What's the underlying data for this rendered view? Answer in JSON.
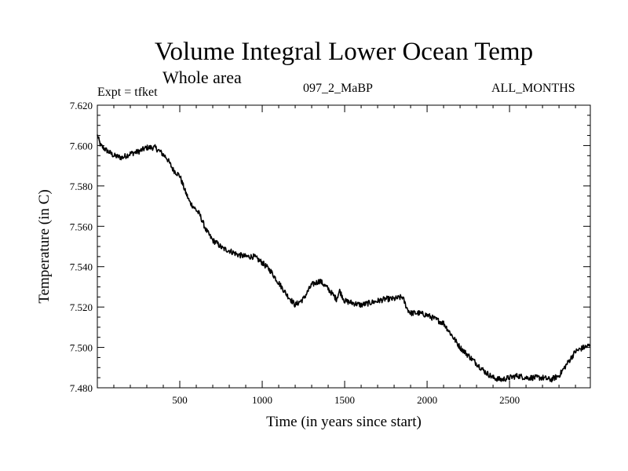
{
  "header": {
    "title": "Volume Integral Lower Ocean Temp",
    "subtitle": "Whole area",
    "experiment": "Expt = tfket",
    "run_id": "097_2_MaBP",
    "months": "ALL_MONTHS"
  },
  "chart_data": {
    "type": "line",
    "title": "Volume Integral Lower Ocean Temp",
    "subtitle": "Whole area",
    "xlabel": "Time (in years since start)",
    "ylabel": "Temperature (in C)",
    "xlim": [
      0,
      2990
    ],
    "ylim": [
      7.48,
      7.62
    ],
    "x_ticks": [
      500,
      1000,
      1500,
      2000,
      2500
    ],
    "x_tick_labels": [
      "500",
      "1000",
      "1500",
      "2000",
      "2500"
    ],
    "y_ticks": [
      7.48,
      7.5,
      7.52,
      7.54,
      7.56,
      7.58,
      7.6,
      7.62
    ],
    "y_tick_labels": [
      "7.480",
      "7.500",
      "7.520",
      "7.540",
      "7.560",
      "7.580",
      "7.600",
      "7.620"
    ],
    "grid": false,
    "series": [
      {
        "color": "#000000",
        "x": [
          0,
          20,
          50,
          100,
          150,
          200,
          250,
          300,
          350,
          380,
          420,
          460,
          500,
          530,
          560,
          600,
          620,
          660,
          700,
          720,
          760,
          800,
          850,
          900,
          950,
          1000,
          1050,
          1100,
          1150,
          1200,
          1250,
          1300,
          1350,
          1400,
          1450,
          1470,
          1500,
          1550,
          1600,
          1650,
          1700,
          1750,
          1800,
          1850,
          1880,
          1900,
          1950,
          2000,
          2050,
          2100,
          2150,
          2200,
          2250,
          2300,
          2350,
          2400,
          2450,
          2500,
          2550,
          2600,
          2650,
          2700,
          2750,
          2800,
          2850,
          2900,
          2950,
          2990
        ],
        "y": [
          7.605,
          7.6,
          7.598,
          7.595,
          7.594,
          7.596,
          7.597,
          7.599,
          7.599,
          7.597,
          7.594,
          7.588,
          7.585,
          7.578,
          7.572,
          7.568,
          7.566,
          7.558,
          7.553,
          7.552,
          7.549,
          7.548,
          7.546,
          7.545,
          7.545,
          7.542,
          7.538,
          7.532,
          7.526,
          7.521,
          7.524,
          7.531,
          7.533,
          7.529,
          7.524,
          7.528,
          7.523,
          7.522,
          7.521,
          7.522,
          7.523,
          7.524,
          7.524,
          7.525,
          7.519,
          7.517,
          7.517,
          7.516,
          7.514,
          7.512,
          7.506,
          7.5,
          7.496,
          7.492,
          7.488,
          7.485,
          7.484,
          7.485,
          7.486,
          7.485,
          7.485,
          7.485,
          7.484,
          7.486,
          7.492,
          7.498,
          7.5,
          7.501
        ]
      }
    ]
  }
}
